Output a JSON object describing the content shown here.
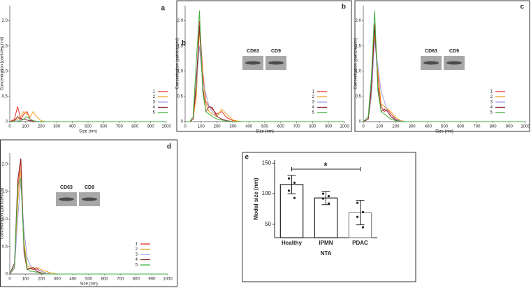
{
  "chart_data": [
    {
      "type": "line",
      "label": "a",
      "xlabel": "Size (nm)",
      "ylabel": "Concentration (particles / ml)",
      "x": [
        0,
        30,
        50,
        70,
        90,
        110,
        130,
        150,
        170,
        200,
        230,
        260,
        300,
        350,
        1000
      ],
      "xlim": [
        0,
        1000
      ],
      "xticks": [
        0,
        100,
        200,
        300,
        400,
        500,
        600,
        700,
        800,
        900,
        1000
      ],
      "ylim": [
        0,
        2.3
      ],
      "yticks": [
        0,
        0.5,
        {
          "value": 1,
          "label": "1.0"
        },
        1.5,
        {
          "value": 2,
          "label": "2.0"
        }
      ],
      "series": [
        {
          "name": "1",
          "color": "#e8302a",
          "values": [
            0,
            0.05,
            0.3,
            0.05,
            0.15,
            0.2,
            0.05,
            0,
            0,
            0,
            0,
            0,
            0,
            0,
            0
          ]
        },
        {
          "name": "2",
          "color": "#f0a020",
          "values": [
            0,
            0.02,
            0.05,
            0.1,
            0.2,
            0.15,
            0.1,
            0.2,
            0.1,
            0.02,
            0,
            0,
            0,
            0,
            0
          ]
        },
        {
          "name": "3",
          "color": "#a0a0e0",
          "values": [
            0,
            0,
            0.02,
            0.05,
            0.05,
            0.03,
            0.02,
            0.02,
            0.01,
            0,
            0,
            0,
            0,
            0,
            0
          ]
        },
        {
          "name": "4",
          "color": "#8b2020",
          "values": [
            0,
            0.02,
            0.1,
            0.05,
            0.05,
            0.03,
            0.02,
            0.01,
            0,
            0,
            0,
            0,
            0,
            0,
            0
          ]
        },
        {
          "name": "5",
          "color": "#40b040",
          "values": [
            0,
            0,
            0,
            0.02,
            0.05,
            0.1,
            0.05,
            0.02,
            0,
            0,
            0,
            0,
            0,
            0,
            0
          ]
        }
      ]
    },
    {
      "type": "line",
      "label": "b",
      "annotation": "b",
      "xlabel": "Size (nm)",
      "ylabel": "Concentration (particles/ml)",
      "insets": [
        "CD63",
        "CD9"
      ],
      "x": [
        0,
        30,
        50,
        70,
        90,
        110,
        130,
        150,
        170,
        200,
        230,
        260,
        300,
        350,
        1000
      ],
      "xlim": [
        0,
        1000
      ],
      "xticks": [
        0,
        100,
        200,
        300,
        400,
        500,
        600,
        700,
        800,
        900,
        1000
      ],
      "ylim": [
        0,
        2.3
      ],
      "yticks": [
        0,
        0.5,
        {
          "value": 1,
          "label": "1.0"
        },
        1.5,
        {
          "value": 2,
          "label": "2.0"
        }
      ],
      "series": [
        {
          "name": "1",
          "color": "#e8302a",
          "values": [
            0,
            0,
            0.05,
            0.6,
            2.0,
            1.0,
            0.4,
            0.3,
            0.25,
            0.15,
            0.2,
            0.08,
            0.02,
            0,
            0
          ]
        },
        {
          "name": "2",
          "color": "#f0a020",
          "values": [
            0,
            0,
            0.05,
            0.5,
            1.8,
            0.9,
            0.35,
            0.2,
            0.15,
            0.1,
            0.25,
            0.15,
            0.03,
            0,
            0
          ]
        },
        {
          "name": "3",
          "color": "#a0a0e0",
          "values": [
            0,
            0,
            0.1,
            0.7,
            1.5,
            0.8,
            0.55,
            0.3,
            0.2,
            0.1,
            0.05,
            0.02,
            0,
            0,
            0
          ]
        },
        {
          "name": "4",
          "color": "#8b2020",
          "values": [
            0,
            0,
            0.05,
            0.8,
            1.9,
            0.7,
            0.2,
            0.3,
            0.28,
            0.1,
            0.05,
            0.02,
            0,
            0,
            0
          ]
        },
        {
          "name": "5",
          "color": "#40b040",
          "values": [
            0,
            0,
            0.1,
            1.2,
            2.2,
            0.6,
            0.2,
            0.15,
            0.1,
            0.05,
            0.03,
            0.01,
            0,
            0,
            0
          ]
        }
      ]
    },
    {
      "type": "line",
      "label": "c",
      "xlabel": "Size (nm)",
      "ylabel": "Concentration (particles/ml)",
      "insets": [
        "CD63",
        "CD9"
      ],
      "x": [
        0,
        30,
        50,
        70,
        90,
        110,
        130,
        150,
        170,
        200,
        230,
        260,
        300,
        350,
        1000
      ],
      "xlim": [
        0,
        1000
      ],
      "xticks": [
        0,
        100,
        200,
        300,
        400,
        500,
        600,
        700,
        800,
        900,
        1000
      ],
      "ylim": [
        0,
        2.3
      ],
      "yticks": [
        0,
        0.5,
        {
          "value": 1,
          "label": "1.0"
        },
        1.5,
        {
          "value": 2,
          "label": "2.0"
        }
      ],
      "series": [
        {
          "name": "1",
          "color": "#e8302a",
          "values": [
            0,
            0.05,
            0.6,
            1.95,
            0.9,
            0.3,
            0.2,
            0.25,
            0.15,
            0.05,
            0.02,
            0,
            0,
            0,
            0
          ]
        },
        {
          "name": "2",
          "color": "#f0a020",
          "values": [
            0,
            0.05,
            0.5,
            1.7,
            1.0,
            0.35,
            0.3,
            0.25,
            0.2,
            0.08,
            0.02,
            0,
            0,
            0,
            0
          ]
        },
        {
          "name": "3",
          "color": "#a0a0e0",
          "values": [
            0,
            0.05,
            0.5,
            1.6,
            1.1,
            0.6,
            0.4,
            0.2,
            0.1,
            0.05,
            0.01,
            0,
            0,
            0,
            0
          ]
        },
        {
          "name": "4",
          "color": "#8b2020",
          "values": [
            0,
            0.05,
            0.7,
            1.9,
            0.7,
            0.2,
            0.25,
            0.2,
            0.1,
            0.03,
            0,
            0,
            0,
            0,
            0
          ]
        },
        {
          "name": "5",
          "color": "#40b040",
          "values": [
            0,
            0.1,
            0.9,
            2.2,
            0.6,
            0.2,
            0.15,
            0.1,
            0.05,
            0.02,
            0,
            0,
            0,
            0,
            0
          ]
        }
      ]
    },
    {
      "type": "line",
      "label": "d",
      "xlabel": "Size (nm)",
      "ylabel": "Concentration (particles/ml)",
      "insets": [
        "CD63",
        "CD9"
      ],
      "x": [
        0,
        30,
        50,
        70,
        90,
        110,
        130,
        150,
        170,
        200,
        230,
        260,
        300,
        350,
        1000
      ],
      "xlim": [
        0,
        1000
      ],
      "xticks": [
        0,
        100,
        200,
        300,
        400,
        500,
        600,
        700,
        800,
        900,
        1000
      ],
      "ylim": [
        0,
        2.2
      ],
      "yticks": [
        0,
        0.5,
        {
          "value": 1,
          "label": "1.0"
        },
        1.5,
        {
          "value": 2,
          "label": "2.0"
        }
      ],
      "series": [
        {
          "name": "1",
          "color": "#e8302a",
          "values": [
            0,
            0.1,
            1.5,
            2.1,
            0.5,
            0.1,
            0.1,
            0.08,
            0.1,
            0.05,
            0.02,
            0,
            0,
            0,
            0
          ]
        },
        {
          "name": "2",
          "color": "#f0a020",
          "values": [
            0,
            0.1,
            1.3,
            1.9,
            0.6,
            0.15,
            0.12,
            0.1,
            0.12,
            0.08,
            0.05,
            0.02,
            0,
            0,
            0
          ]
        },
        {
          "name": "3",
          "color": "#a0a0e0",
          "values": [
            0,
            0.1,
            1.0,
            1.7,
            0.8,
            0.3,
            0.15,
            0.1,
            0.08,
            0.05,
            0.02,
            0,
            0,
            0,
            0
          ]
        },
        {
          "name": "4",
          "color": "#8b2020",
          "values": [
            0,
            0.2,
            1.7,
            2.1,
            0.4,
            0.08,
            0.1,
            0.12,
            0.05,
            0.02,
            0,
            0,
            0,
            0,
            0
          ]
        },
        {
          "name": "5",
          "color": "#40b040",
          "values": [
            0,
            0.15,
            1.6,
            1.75,
            0.5,
            0.1,
            0.05,
            0.05,
            0.03,
            0.01,
            0,
            0,
            0,
            0,
            0
          ]
        }
      ]
    },
    {
      "type": "bar",
      "label": "e",
      "xlabel": "NTA",
      "ylabel": "Modal size (nm)",
      "annotation": "*",
      "categories": [
        "Healthy",
        "IPMN",
        "PDAC"
      ],
      "values": [
        115,
        93,
        69
      ],
      "errors": [
        15,
        11,
        20
      ],
      "points": [
        [
          125,
          118,
          105,
          93
        ],
        [
          100,
          96,
          92,
          84
        ],
        [
          85,
          70,
          62,
          45
        ]
      ],
      "colors": [
        "#222222",
        "#222222",
        "#888888"
      ],
      "ylim": [
        28,
        155
      ],
      "yticks": [
        50,
        100,
        150
      ]
    }
  ]
}
